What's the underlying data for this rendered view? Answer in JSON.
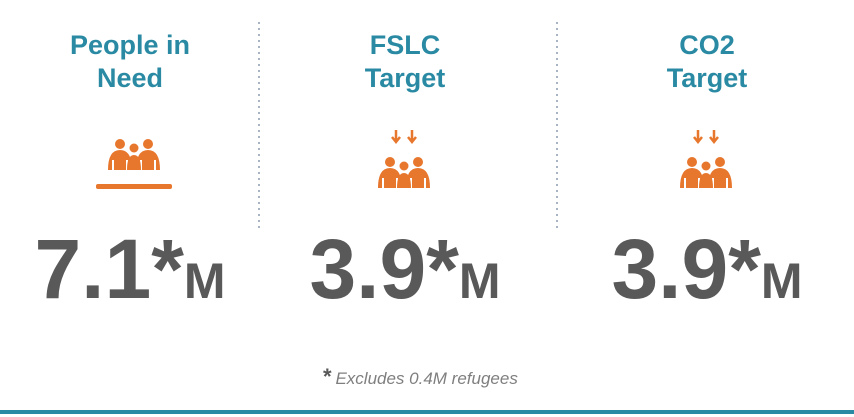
{
  "panels": [
    {
      "title": [
        "People in",
        "Need"
      ],
      "value": "7.1*",
      "unit": "M"
    },
    {
      "title": [
        "FSLC",
        "Target"
      ],
      "value": "3.9*",
      "unit": "M"
    },
    {
      "title": [
        "CO2",
        "Target"
      ],
      "value": "3.9*",
      "unit": "M"
    }
  ],
  "footnote": {
    "mark": "*",
    "text": "Excludes 0.4M refugees"
  }
}
